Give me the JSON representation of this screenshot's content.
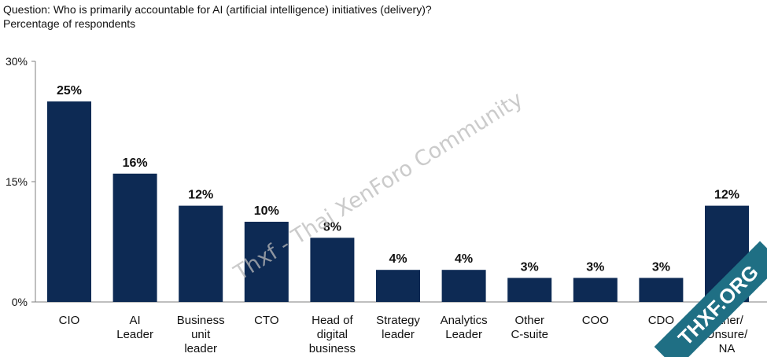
{
  "header": {
    "question": "Question: Who is primarily accountable for AI (artificial intelligence) initiatives (delivery)?",
    "subtitle": "Percentage of respondents"
  },
  "chart_data": {
    "type": "bar",
    "categories": [
      [
        "CIO"
      ],
      [
        "AI",
        "Leader"
      ],
      [
        "Business",
        "unit",
        "leader"
      ],
      [
        "CTO"
      ],
      [
        "Head of",
        "digital",
        "business"
      ],
      [
        "Strategy",
        "leader"
      ],
      [
        "Analytics",
        "Leader"
      ],
      [
        "Other",
        "C-suite"
      ],
      [
        "COO"
      ],
      [
        "CDO"
      ],
      [
        "Other/",
        "Unsure/",
        "NA"
      ]
    ],
    "values": [
      25,
      16,
      12,
      10,
      8,
      4,
      4,
      3,
      3,
      3,
      12
    ],
    "data_labels": [
      "25%",
      "16%",
      "12%",
      "10%",
      "8%",
      "4%",
      "4%",
      "3%",
      "3%",
      "3%",
      "12%"
    ],
    "y_ticks": [
      0,
      15,
      30
    ],
    "y_tick_labels": [
      "0%",
      "15%",
      "30%"
    ],
    "ylim": [
      0,
      30
    ],
    "grid": false,
    "bar_color": "#0d2a54"
  },
  "watermark": {
    "text": "Thxf - Thai XenForo Community",
    "ribbon_text": "THXF.ORG",
    "ribbon_color": "#1f6f84"
  }
}
